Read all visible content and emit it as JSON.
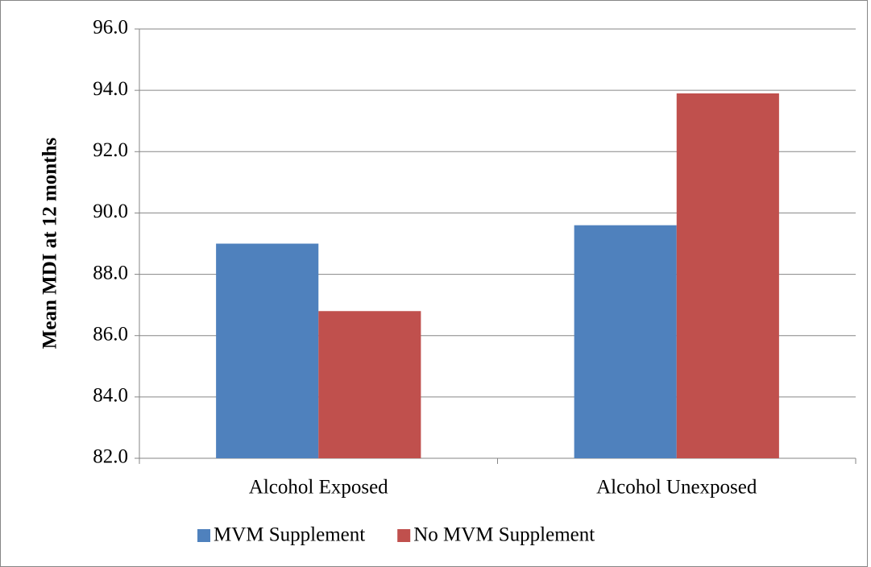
{
  "chart_data": {
    "type": "bar",
    "y_label": "Mean MDI at 12 months",
    "categories": [
      "Alcohol Exposed",
      "Alcohol Unexposed"
    ],
    "series": [
      {
        "name": "MVM Supplement",
        "color": "#4f81bd",
        "values": [
          89.0,
          89.6
        ]
      },
      {
        "name": "No MVM Supplement",
        "color": "#c0504d",
        "values": [
          86.8,
          93.9
        ]
      }
    ],
    "ylim": [
      82,
      96
    ],
    "yticks": [
      {
        "value": 82,
        "label": "82.0"
      },
      {
        "value": 84,
        "label": "84.0"
      },
      {
        "value": 86,
        "label": "86.0"
      },
      {
        "value": 88,
        "label": "88.0"
      },
      {
        "value": 90,
        "label": "90.0"
      },
      {
        "value": 92,
        "label": "92.0"
      },
      {
        "value": 94,
        "label": "94.0"
      },
      {
        "value": 96,
        "label": "96.0"
      }
    ],
    "grid": true,
    "legend": "bottom"
  }
}
